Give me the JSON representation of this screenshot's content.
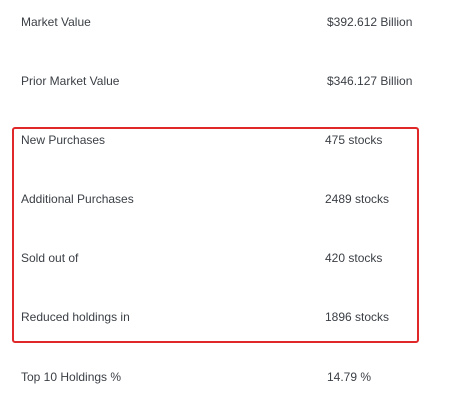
{
  "stats": {
    "rows": [
      {
        "label": "Market Value",
        "value": "$392.612 Billion"
      },
      {
        "label": "Prior Market Value",
        "value": "$346.127 Billion"
      },
      {
        "label": "New Purchases",
        "value": "475 stocks"
      },
      {
        "label": "Additional Purchases",
        "value": "2489 stocks"
      },
      {
        "label": "Sold out of",
        "value": "420 stocks"
      },
      {
        "label": "Reduced holdings in",
        "value": "1896 stocks"
      },
      {
        "label": "Top 10 Holdings %",
        "value": "14.79 %"
      }
    ],
    "highlight_color": "#e0282a"
  }
}
